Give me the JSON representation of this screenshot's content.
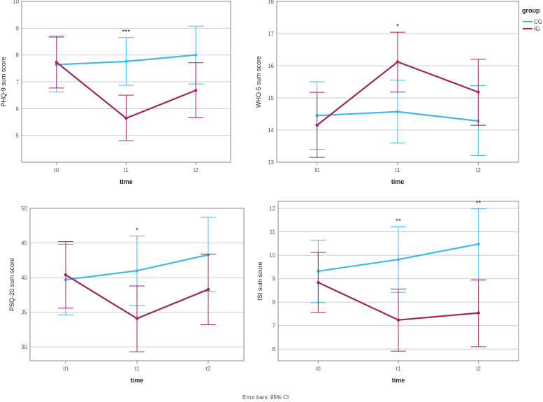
{
  "colors": {
    "CG": "#41b6f1",
    "IG": "#a3245a",
    "grid": "#cccccc",
    "frame": "#888888"
  },
  "legend": {
    "title": "group",
    "items": [
      "CG",
      "IG"
    ]
  },
  "footnote": "Error bars: 95% CI",
  "chart_data": [
    {
      "type": "line",
      "ylabel": "PHQ-9 sum score",
      "xlabel": "time",
      "categories": [
        "t0",
        "t1",
        "t2"
      ],
      "ylim": [
        4,
        10
      ],
      "yticks": [
        5,
        6,
        7,
        8,
        9,
        10
      ],
      "series": [
        {
          "name": "CG",
          "values": [
            7.64,
            7.76,
            8.0
          ],
          "ci_low": [
            6.62,
            6.87,
            6.92
          ],
          "ci_high": [
            8.66,
            8.65,
            9.08
          ]
        },
        {
          "name": "IG",
          "values": [
            7.73,
            5.64,
            6.68
          ],
          "ci_low": [
            6.77,
            4.8,
            5.66
          ],
          "ci_high": [
            8.7,
            6.5,
            7.71
          ]
        }
      ],
      "annotations": [
        {
          "category": "t1",
          "text": "***"
        }
      ]
    },
    {
      "type": "line",
      "ylabel": "WHO-5 sum score",
      "xlabel": "time",
      "categories": [
        "t0",
        "t1",
        "t2"
      ],
      "ylim": [
        13,
        18
      ],
      "yticks": [
        13,
        14,
        15,
        16,
        17,
        18
      ],
      "series": [
        {
          "name": "CG",
          "values": [
            14.45,
            14.57,
            14.28
          ],
          "ci_low": [
            13.4,
            13.6,
            13.21
          ],
          "ci_high": [
            15.5,
            15.55,
            15.38
          ]
        },
        {
          "name": "IG",
          "values": [
            14.15,
            16.12,
            15.18
          ],
          "ci_low": [
            13.15,
            15.18,
            14.15
          ],
          "ci_high": [
            15.17,
            17.04,
            16.2
          ]
        }
      ],
      "annotations": [
        {
          "category": "t1",
          "text": "*"
        }
      ]
    },
    {
      "type": "line",
      "ylabel": "PSQ-20 sum score",
      "xlabel": "time",
      "categories": [
        "t0",
        "t1",
        "t2"
      ],
      "ylim": [
        28,
        50
      ],
      "yticks": [
        30,
        35,
        40,
        45,
        50
      ],
      "series": [
        {
          "name": "CG",
          "values": [
            39.7,
            41.0,
            43.3
          ],
          "ci_low": [
            34.6,
            36.0,
            38.0
          ],
          "ci_high": [
            44.8,
            46.0,
            48.7
          ]
        },
        {
          "name": "IG",
          "values": [
            40.4,
            34.1,
            38.3
          ],
          "ci_low": [
            35.6,
            29.3,
            33.2
          ],
          "ci_high": [
            45.2,
            38.8,
            43.4
          ]
        }
      ],
      "annotations": [
        {
          "category": "t1",
          "text": "*"
        }
      ]
    },
    {
      "type": "line",
      "ylabel": "ISI sum score",
      "xlabel": "time",
      "categories": [
        "t0",
        "t1",
        "t2"
      ],
      "ylim": [
        5.5,
        12.3
      ],
      "yticks": [
        6,
        7,
        8,
        9,
        10,
        11,
        12
      ],
      "series": [
        {
          "name": "CG",
          "values": [
            9.32,
            9.82,
            10.48
          ],
          "ci_low": [
            7.98,
            8.42,
            8.95
          ],
          "ci_high": [
            10.65,
            11.21,
            11.98
          ]
        },
        {
          "name": "IG",
          "values": [
            8.84,
            7.24,
            7.54
          ],
          "ci_low": [
            7.56,
            5.91,
            6.1
          ],
          "ci_high": [
            10.12,
            8.56,
            8.95
          ]
        }
      ],
      "annotations": [
        {
          "category": "t1",
          "text": "**"
        },
        {
          "category": "t2",
          "text": "**"
        }
      ]
    }
  ]
}
